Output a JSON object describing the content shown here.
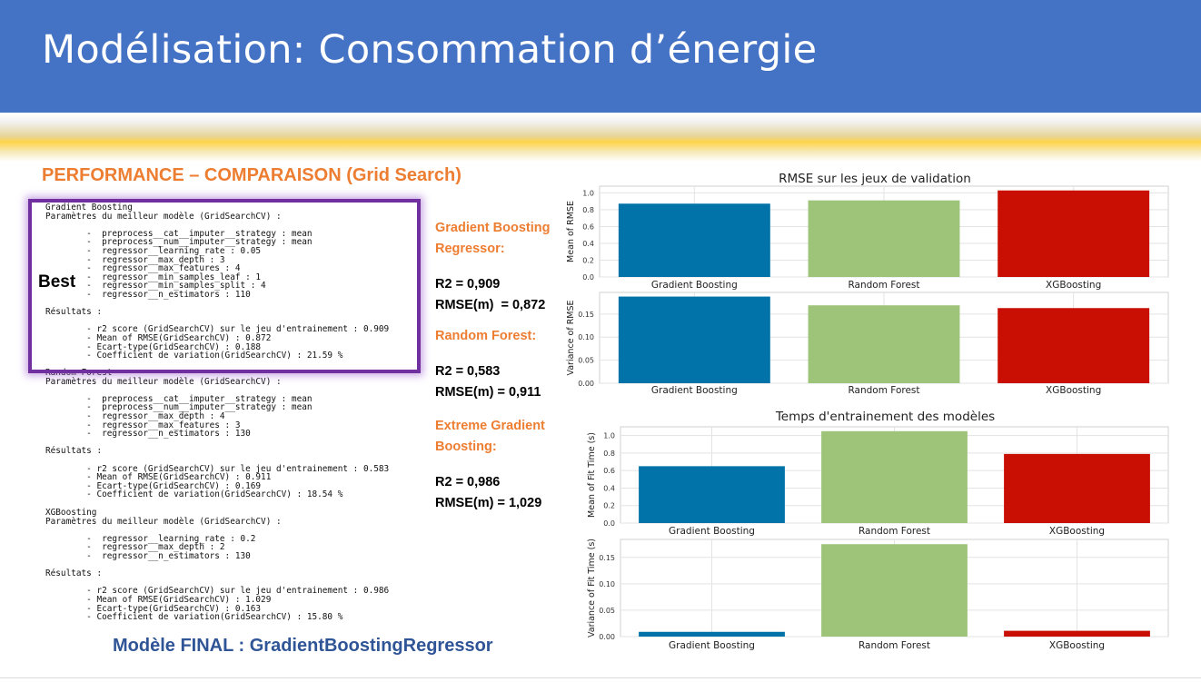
{
  "title": "Modélisation: Consommation d’énergie",
  "section_title": "PERFORMANCE – COMPARAISON (Grid Search)",
  "best_label": "Best",
  "final_model": "Modèle FINAL : GradientBoostingRegressor",
  "code_blocks": [
    {
      "text": "Gradient Boosting\nParamètres du meilleur modèle (GridSearchCV) :\n\n        -  preprocess__cat__imputer__strategy : mean\n        -  preprocess__num__imputer__strategy : mean\n        -  regressor__learning_rate : 0.05\n        -  regressor__max_depth : 3\n        -  regressor__max_features : 4\n        -  regressor__min_samples_leaf : 1\n        -  regressor__min_samples_split : 4\n        -  regressor__n_estimators : 110\n\nRésultats :\n\n        - r2 score (GridSearchCV) sur le jeu d'entrainement : 0.909\n        - Mean of RMSE(GridSearchCV) : 0.872\n        - Ecart-type(GridSearchCV) : 0.188\n        - Coefficient de variation(GridSearchCV) : 21.59 %"
    },
    {
      "text": "Random Forest\nParamètres du meilleur modèle (GridSearchCV) :\n\n        -  preprocess__cat__imputer__strategy : mean\n        -  preprocess__num__imputer__strategy : mean\n        -  regressor__max_depth : 4\n        -  regressor__max_features : 3\n        -  regressor__n_estimators : 130\n\nRésultats :\n\n        - r2 score (GridSearchCV) sur le jeu d'entrainement : 0.583\n        - Mean of RMSE(GridSearchCV) : 0.911\n        - Ecart-type(GridSearchCV) : 0.169\n        - Coefficient de variation(GridSearchCV) : 18.54 %"
    },
    {
      "text": "XGBoosting\nParamètres du meilleur modèle (GridSearchCV) :\n\n        -  regressor__learning_rate : 0.2\n        -  regressor__max_depth : 2\n        -  regressor__n_estimators : 130\n\nRésultats :\n\n        - r2 score (GridSearchCV) sur le jeu d'entrainement : 0.986\n        - Mean of RMSE(GridSearchCV) : 1.029\n        - Ecart-type(GridSearchCV) : 0.163\n        - Coefficient de variation(GridSearchCV) : 15.80 %"
    }
  ],
  "summary": [
    {
      "name": "Gradient Boosting Regressor:",
      "r2": "R2 = 0,909",
      "rmse": "RMSE(m)  = 0,872"
    },
    {
      "name": "Random Forest:",
      "r2": "R2 = 0,583",
      "rmse": "RMSE(m) = 0,911"
    },
    {
      "name": "Extreme Gradient Boosting:",
      "r2": "R2 = 0,986",
      "rmse": "RMSE(m) = 1,029"
    }
  ],
  "colors": {
    "gradient_boosting": "#0173a8",
    "random_forest": "#9dc479",
    "xgboosting": "#c90e03",
    "accent": "#ed7d31",
    "banner": "#4472c4",
    "best_box": "#7030a0"
  },
  "chart_data": [
    {
      "type": "bar",
      "title": "RMSE sur les jeux de validation",
      "ylabel": "Mean of RMSE",
      "categories": [
        "Gradient Boosting",
        "Random Forest",
        "XGBoosting"
      ],
      "values": [
        0.872,
        0.911,
        1.029
      ],
      "ylim": [
        0,
        1.08
      ],
      "yticks": [
        "0.0",
        "0.2",
        "0.4",
        "0.6",
        "0.8",
        "1.0"
      ],
      "ytick_values": [
        0,
        0.2,
        0.4,
        0.6,
        0.8,
        1.0
      ],
      "grid": true
    },
    {
      "type": "bar",
      "title": "",
      "ylabel": "Variance of RMSE",
      "categories": [
        "Gradient Boosting",
        "Random Forest",
        "XGBoosting"
      ],
      "values": [
        0.188,
        0.169,
        0.163
      ],
      "ylim": [
        0,
        0.197
      ],
      "yticks": [
        "0.00",
        "0.05",
        "0.10",
        "0.15"
      ],
      "ytick_values": [
        0,
        0.05,
        0.1,
        0.15
      ],
      "grid": true
    },
    {
      "type": "bar",
      "title": "Temps d'entrainement des modèles",
      "ylabel": "Mean of Fit Time (s)",
      "categories": [
        "Gradient Boosting",
        "Random Forest",
        "XGBoosting"
      ],
      "values": [
        0.65,
        1.05,
        0.79
      ],
      "ylim": [
        0,
        1.1
      ],
      "yticks": [
        "0.0",
        "0.2",
        "0.4",
        "0.6",
        "0.8",
        "1.0"
      ],
      "ytick_values": [
        0,
        0.2,
        0.4,
        0.6,
        0.8,
        1.0
      ],
      "grid": true
    },
    {
      "type": "bar",
      "title": "",
      "ylabel": "Variance of Fit Time (s)",
      "categories": [
        "Gradient Boosting",
        "Random Forest",
        "XGBoosting"
      ],
      "values": [
        0.009,
        0.175,
        0.011
      ],
      "ylim": [
        0,
        0.184
      ],
      "yticks": [
        "0.00",
        "0.05",
        "0.10",
        "0.15"
      ],
      "ytick_values": [
        0,
        0.05,
        0.1,
        0.15
      ],
      "grid": true
    }
  ]
}
